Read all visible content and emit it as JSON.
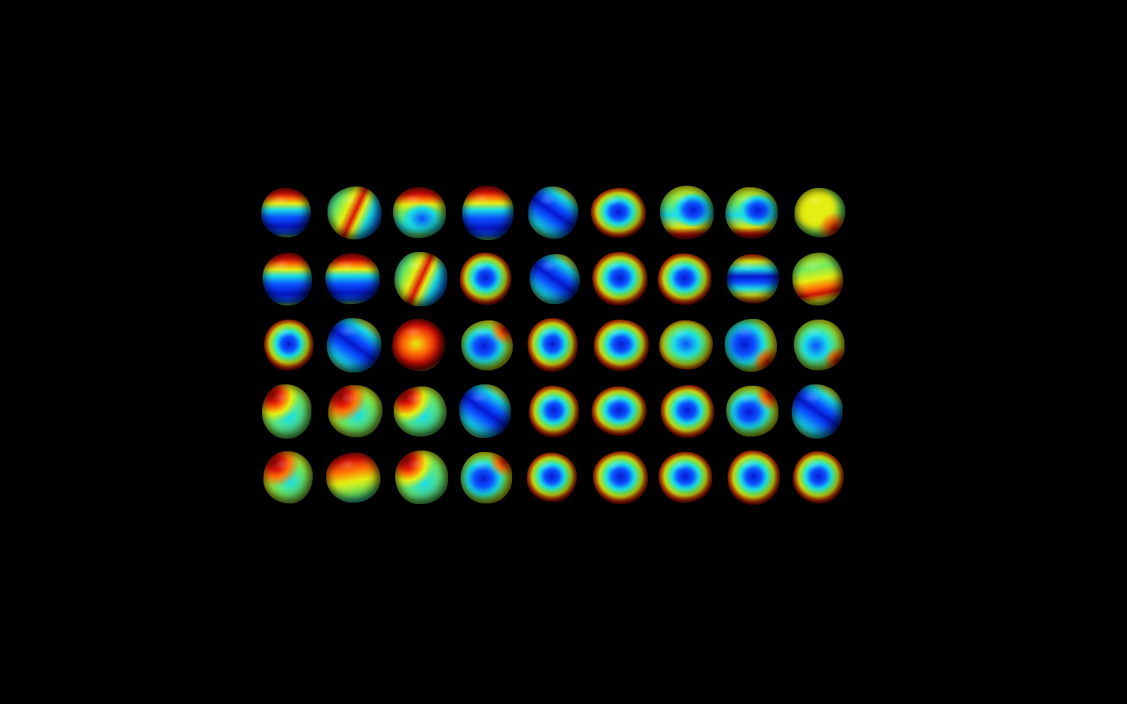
{
  "background_color": "#000000",
  "colormap": "jet",
  "colors": {
    "dark_blue": "#0a1ab8",
    "blue": "#1450e8",
    "cyan": "#2ed8e0",
    "green": "#7ee86a",
    "yellow": "#e4ec2c",
    "orange": "#f07818",
    "red": "#c81a10",
    "dark_red": "#8a0c08"
  },
  "grid": {
    "rows": 5,
    "columns": 9
  },
  "blobs": [
    {
      "pattern": "red-top-blue-bottom"
    },
    {
      "pattern": "diagonal-red-band"
    },
    {
      "pattern": "red-top-cyan-center"
    },
    {
      "pattern": "red-top-blue-bottom"
    },
    {
      "pattern": "diagonal-blue-band"
    },
    {
      "pattern": "blue-center-red-rim"
    },
    {
      "pattern": "blue-center-red-bottom"
    },
    {
      "pattern": "blue-center-red-bottom"
    },
    {
      "pattern": "yellow-dominant-red-corner"
    },
    {
      "pattern": "red-top-blue-bottom"
    },
    {
      "pattern": "red-top-blue-bottom"
    },
    {
      "pattern": "diagonal-red-band"
    },
    {
      "pattern": "blue-center-red-rim"
    },
    {
      "pattern": "diagonal-blue-band"
    },
    {
      "pattern": "blue-center-red-rim"
    },
    {
      "pattern": "blue-center-red-rim"
    },
    {
      "pattern": "horizontal-blue-band"
    },
    {
      "pattern": "yellow-dominant-red-band"
    },
    {
      "pattern": "blue-center-red-rim"
    },
    {
      "pattern": "diagonal-blue-band"
    },
    {
      "pattern": "red-dominant"
    },
    {
      "pattern": "blue-center-red-corner"
    },
    {
      "pattern": "blue-center-red-rim"
    },
    {
      "pattern": "blue-center-red-rim"
    },
    {
      "pattern": "cyan-center-red-rim"
    },
    {
      "pattern": "blue-left-red-corner"
    },
    {
      "pattern": "cyan-center-red-corner"
    },
    {
      "pattern": "red-corner-cyan-body"
    },
    {
      "pattern": "red-corner-green-body"
    },
    {
      "pattern": "red-corner-cyan-body"
    },
    {
      "pattern": "diagonal-blue-band"
    },
    {
      "pattern": "blue-center-red-rim"
    },
    {
      "pattern": "blue-center-red-rim"
    },
    {
      "pattern": "blue-center-red-rim"
    },
    {
      "pattern": "blue-center-red-corner"
    },
    {
      "pattern": "diagonal-blue-band"
    },
    {
      "pattern": "red-corner-green-body"
    },
    {
      "pattern": "red-top-yellow-body"
    },
    {
      "pattern": "red-corner-cyan-body"
    },
    {
      "pattern": "blue-center-red-corner"
    },
    {
      "pattern": "blue-center-red-rim"
    },
    {
      "pattern": "blue-center-red-rim"
    },
    {
      "pattern": "blue-center-red-rim"
    },
    {
      "pattern": "blue-center-red-rim"
    },
    {
      "pattern": "blue-center-red-rim"
    }
  ]
}
